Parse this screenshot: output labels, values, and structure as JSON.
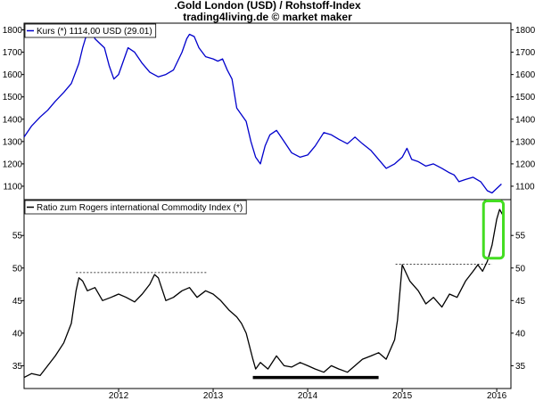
{
  "header": {
    "title": ".Gold London (USD) / Rohstoff-Index",
    "subtitle": "trading4living.de © market maker"
  },
  "chart_data": [
    {
      "type": "line",
      "legend": "Kurs (*) 1114,00 USD (29.01)",
      "legend_position": "top-left",
      "color": "#0000cc",
      "xlim": [
        2011.0,
        2016.15
      ],
      "ylim": [
        1040,
        1830
      ],
      "y_ticks": [
        "1100",
        "1200",
        "1300",
        "1400",
        "1500",
        "1600",
        "1700",
        "1800"
      ],
      "x": [
        2011.0,
        2011.08,
        2011.17,
        2011.25,
        2011.33,
        2011.42,
        2011.5,
        2011.58,
        2011.62,
        2011.67,
        2011.72,
        2011.75,
        2011.8,
        2011.85,
        2011.9,
        2011.95,
        2012.0,
        2012.05,
        2012.1,
        2012.17,
        2012.25,
        2012.33,
        2012.42,
        2012.5,
        2012.58,
        2012.67,
        2012.72,
        2012.75,
        2012.8,
        2012.85,
        2012.92,
        2013.0,
        2013.05,
        2013.1,
        2013.15,
        2013.2,
        2013.25,
        2013.3,
        2013.35,
        2013.4,
        2013.45,
        2013.5,
        2013.55,
        2013.6,
        2013.67,
        2013.75,
        2013.83,
        2013.92,
        2014.0,
        2014.08,
        2014.17,
        2014.25,
        2014.33,
        2014.42,
        2014.5,
        2014.58,
        2014.67,
        2014.75,
        2014.83,
        2014.92,
        2015.0,
        2015.05,
        2015.1,
        2015.17,
        2015.25,
        2015.33,
        2015.42,
        2015.5,
        2015.55,
        2015.6,
        2015.67,
        2015.75,
        2015.83,
        2015.9,
        2015.95,
        2016.0,
        2016.05
      ],
      "y": [
        1320,
        1370,
        1410,
        1440,
        1480,
        1520,
        1560,
        1650,
        1720,
        1790,
        1800,
        1760,
        1740,
        1720,
        1640,
        1580,
        1600,
        1660,
        1720,
        1700,
        1650,
        1610,
        1590,
        1600,
        1620,
        1700,
        1760,
        1780,
        1770,
        1720,
        1680,
        1670,
        1660,
        1670,
        1620,
        1580,
        1450,
        1420,
        1390,
        1300,
        1230,
        1200,
        1280,
        1330,
        1350,
        1300,
        1250,
        1230,
        1240,
        1280,
        1340,
        1330,
        1310,
        1290,
        1320,
        1290,
        1260,
        1220,
        1180,
        1200,
        1230,
        1270,
        1220,
        1210,
        1190,
        1200,
        1180,
        1160,
        1150,
        1120,
        1130,
        1140,
        1120,
        1080,
        1070,
        1090,
        1110
      ]
    },
    {
      "type": "line",
      "legend": "Ratio zum Rogers international Commodity Index (*)",
      "legend_position": "top-left",
      "color": "#000000",
      "xlim": [
        2011.0,
        2016.15
      ],
      "ylim": [
        31.5,
        60.5
      ],
      "y_ticks": [
        "35",
        "40",
        "45",
        "50",
        "55"
      ],
      "x_ticks": [
        "2012",
        "2013",
        "2014",
        "2015",
        "2016"
      ],
      "x_tick_values": [
        2012,
        2013,
        2014,
        2015,
        2016
      ],
      "x": [
        2011.0,
        2011.08,
        2011.17,
        2011.25,
        2011.33,
        2011.42,
        2011.5,
        2011.55,
        2011.58,
        2011.62,
        2011.67,
        2011.75,
        2011.83,
        2011.92,
        2012.0,
        2012.08,
        2012.17,
        2012.25,
        2012.33,
        2012.38,
        2012.42,
        2012.5,
        2012.58,
        2012.67,
        2012.75,
        2012.83,
        2012.92,
        2013.0,
        2013.08,
        2013.17,
        2013.25,
        2013.3,
        2013.35,
        2013.42,
        2013.45,
        2013.5,
        2013.58,
        2013.67,
        2013.75,
        2013.83,
        2013.92,
        2014.0,
        2014.08,
        2014.17,
        2014.25,
        2014.33,
        2014.42,
        2014.5,
        2014.58,
        2014.67,
        2014.75,
        2014.83,
        2014.92,
        2014.95,
        2015.0,
        2015.08,
        2015.17,
        2015.25,
        2015.33,
        2015.42,
        2015.5,
        2015.58,
        2015.67,
        2015.75,
        2015.8,
        2015.85,
        2015.9,
        2015.95,
        2016.0,
        2016.03,
        2016.07
      ],
      "y": [
        33.2,
        33.8,
        33.5,
        35.0,
        36.5,
        38.5,
        41.5,
        46.5,
        48.5,
        48.0,
        46.5,
        47.0,
        45.0,
        45.5,
        46.0,
        45.5,
        44.8,
        46.0,
        47.5,
        49.0,
        48.5,
        45.0,
        45.5,
        46.5,
        47.0,
        45.5,
        46.5,
        46.0,
        45.0,
        43.5,
        42.5,
        41.5,
        40.0,
        36.0,
        34.5,
        35.5,
        34.5,
        36.5,
        35.0,
        34.8,
        35.5,
        35.0,
        34.5,
        34.0,
        35.0,
        34.5,
        34.0,
        35.0,
        36.0,
        36.5,
        37.0,
        36.0,
        39.0,
        42.0,
        50.5,
        48.0,
        46.5,
        44.5,
        45.5,
        44.0,
        46.0,
        45.5,
        48.0,
        49.5,
        50.5,
        49.5,
        51.0,
        53.5,
        57.5,
        59.0,
        58.0
      ],
      "annotation_series": [
        {
          "name": "dashed-resistance-2012",
          "style": "dashed",
          "x": [
            2011.55,
            2012.93
          ],
          "y": [
            49.3,
            49.3
          ]
        },
        {
          "name": "dashed-resistance-2015",
          "style": "dashed",
          "x": [
            2014.93,
            2015.95
          ],
          "y": [
            50.6,
            50.6
          ]
        },
        {
          "name": "bottom-support-bar",
          "style": "thick",
          "x": [
            2013.42,
            2014.75
          ],
          "y": [
            33.2,
            33.2
          ]
        }
      ],
      "highlight_box": {
        "color": "#44dd22",
        "x": [
          2015.86,
          2016.07
        ],
        "y": [
          51.5,
          60.3
        ]
      }
    }
  ]
}
